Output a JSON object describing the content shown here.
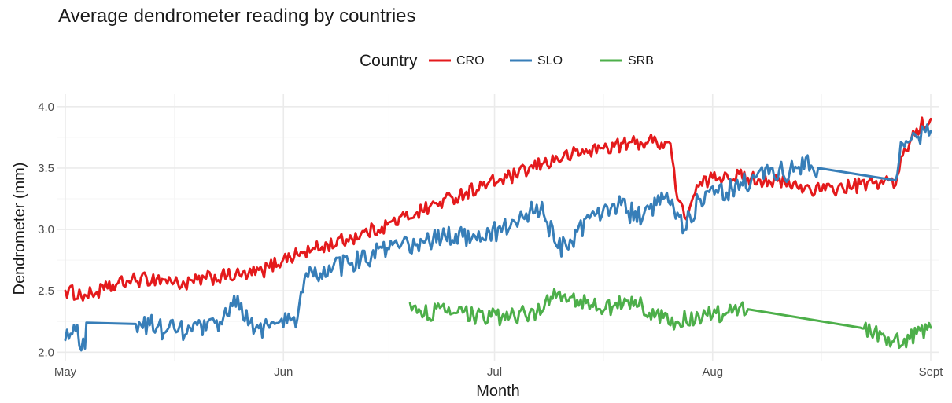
{
  "chart_data": {
    "type": "line",
    "title": "Average dendrometer reading by countries",
    "xlabel": "Month",
    "ylabel": "Dendrometer (mm)",
    "x_ticks": [
      "May",
      "Jun",
      "Jul",
      "Aug",
      "Sept"
    ],
    "y_ticks": [
      "2.0",
      "2.5",
      "3.0",
      "3.5",
      "4.0"
    ],
    "ylim": [
      1.97,
      4.05
    ],
    "xlim_days": [
      0,
      123
    ],
    "grid": true,
    "legend": {
      "title": "Country",
      "position": "top"
    },
    "series": [
      {
        "name": "CRO",
        "color": "#E41A1C",
        "points": [
          [
            0,
            2.5
          ],
          [
            3,
            2.46
          ],
          [
            6,
            2.52
          ],
          [
            9,
            2.58
          ],
          [
            13,
            2.6
          ],
          [
            15,
            2.58
          ],
          [
            17,
            2.55
          ],
          [
            20,
            2.6
          ],
          [
            23,
            2.62
          ],
          [
            26,
            2.63
          ],
          [
            28,
            2.66
          ],
          [
            31,
            2.76
          ],
          [
            35,
            2.83
          ],
          [
            40,
            2.92
          ],
          [
            45,
            3.02
          ],
          [
            50,
            3.14
          ],
          [
            55,
            3.26
          ],
          [
            60,
            3.37
          ],
          [
            64,
            3.44
          ],
          [
            68,
            3.54
          ],
          [
            72,
            3.61
          ],
          [
            76,
            3.66
          ],
          [
            80,
            3.7
          ],
          [
            84,
            3.72
          ],
          [
            86,
            3.7
          ],
          [
            87,
            3.25
          ],
          [
            88,
            3.1
          ],
          [
            90,
            3.35
          ],
          [
            92,
            3.42
          ],
          [
            94,
            3.45
          ],
          [
            97,
            3.42
          ],
          [
            100,
            3.4
          ],
          [
            104,
            3.35
          ],
          [
            108,
            3.32
          ],
          [
            112,
            3.35
          ],
          [
            115,
            3.38
          ],
          [
            117,
            3.4
          ],
          [
            118,
            3.36
          ],
          [
            119,
            3.6
          ],
          [
            121,
            3.82
          ],
          [
            123,
            3.9
          ]
        ],
        "noise": 0.06
      },
      {
        "name": "SLO",
        "color": "#377EB8",
        "points": [
          [
            0,
            2.1
          ],
          [
            1,
            2.15
          ],
          [
            1.7,
            2.22
          ],
          [
            2,
            2.05
          ],
          [
            2.8,
            2.03
          ],
          [
            3,
            2.24
          ],
          [
            10,
            2.23
          ],
          [
            12,
            2.22
          ],
          [
            13,
            2.2
          ],
          [
            16,
            2.17
          ],
          [
            20,
            2.18
          ],
          [
            22,
            2.25
          ],
          [
            23,
            2.3
          ],
          [
            24,
            2.46
          ],
          [
            25,
            2.4
          ],
          [
            26,
            2.22
          ],
          [
            29,
            2.2
          ],
          [
            32,
            2.26
          ],
          [
            33,
            2.28
          ],
          [
            34,
            2.6
          ],
          [
            38,
            2.68
          ],
          [
            42,
            2.76
          ],
          [
            46,
            2.84
          ],
          [
            50,
            2.88
          ],
          [
            54,
            2.94
          ],
          [
            58,
            2.96
          ],
          [
            62,
            2.98
          ],
          [
            65,
            3.1
          ],
          [
            67,
            3.2
          ],
          [
            68,
            3.12
          ],
          [
            70,
            2.85
          ],
          [
            72,
            2.9
          ],
          [
            75,
            3.15
          ],
          [
            79,
            3.2
          ],
          [
            80,
            3.15
          ],
          [
            82,
            3.08
          ],
          [
            84,
            3.2
          ],
          [
            85,
            3.25
          ],
          [
            86,
            3.2
          ],
          [
            88,
            3.0
          ],
          [
            90,
            3.25
          ],
          [
            92,
            3.35
          ],
          [
            94,
            3.3
          ],
          [
            96,
            3.38
          ],
          [
            98,
            3.42
          ],
          [
            100,
            3.45
          ],
          [
            103,
            3.48
          ],
          [
            104,
            3.5
          ],
          [
            106,
            3.52
          ],
          [
            107,
            3.5
          ],
          [
            118,
            3.4
          ],
          [
            119,
            3.7
          ],
          [
            121,
            3.75
          ],
          [
            123,
            3.8
          ]
        ],
        "noise": 0.09
      },
      {
        "name": "SRB",
        "color": "#4DAF4A",
        "points": [
          [
            49,
            2.4
          ],
          [
            50,
            2.32
          ],
          [
            54,
            2.33
          ],
          [
            58,
            2.3
          ],
          [
            62,
            2.28
          ],
          [
            66,
            2.32
          ],
          [
            68,
            2.35
          ],
          [
            69,
            2.45
          ],
          [
            70,
            2.48
          ],
          [
            72,
            2.45
          ],
          [
            74,
            2.4
          ],
          [
            76,
            2.35
          ],
          [
            78,
            2.38
          ],
          [
            80,
            2.42
          ],
          [
            82,
            2.38
          ],
          [
            83,
            2.32
          ],
          [
            85,
            2.28
          ],
          [
            86,
            2.22
          ],
          [
            87,
            2.25
          ],
          [
            90,
            2.3
          ],
          [
            94,
            2.32
          ],
          [
            96,
            2.38
          ],
          [
            97,
            2.35
          ],
          [
            113,
            2.2
          ],
          [
            115,
            2.17
          ],
          [
            117,
            2.12
          ],
          [
            119,
            2.06
          ],
          [
            121,
            2.15
          ],
          [
            123,
            2.2
          ]
        ],
        "noise": 0.07
      }
    ]
  }
}
